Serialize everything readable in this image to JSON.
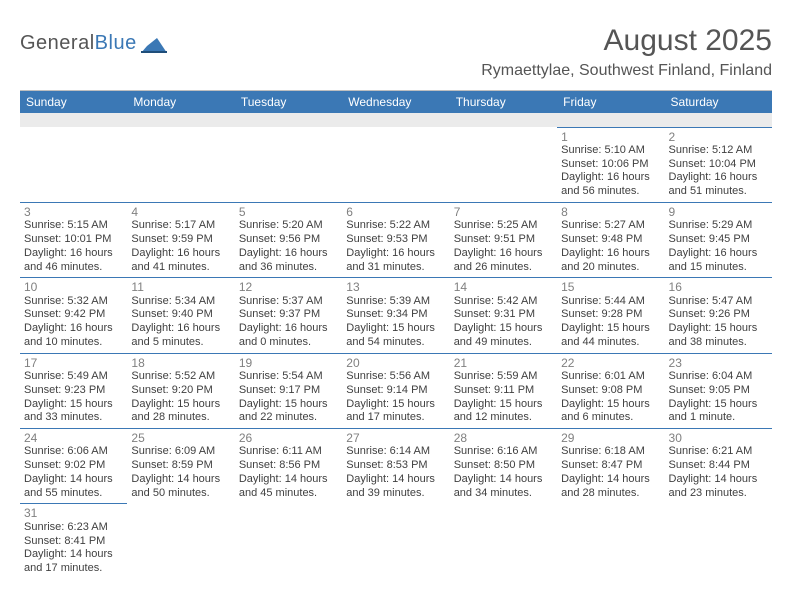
{
  "logo": {
    "text_general": "General",
    "text_blue": "Blue"
  },
  "title": "August 2025",
  "location": "Rymaettylae, Southwest Finland, Finland",
  "header_bg": "#3b78b5",
  "weekdays": [
    "Sunday",
    "Monday",
    "Tuesday",
    "Wednesday",
    "Thursday",
    "Friday",
    "Saturday"
  ],
  "weeks": [
    [
      null,
      null,
      null,
      null,
      null,
      {
        "n": "1",
        "sr": "Sunrise: 5:10 AM",
        "ss": "Sunset: 10:06 PM",
        "d1": "Daylight: 16 hours",
        "d2": "and 56 minutes."
      },
      {
        "n": "2",
        "sr": "Sunrise: 5:12 AM",
        "ss": "Sunset: 10:04 PM",
        "d1": "Daylight: 16 hours",
        "d2": "and 51 minutes."
      }
    ],
    [
      {
        "n": "3",
        "sr": "Sunrise: 5:15 AM",
        "ss": "Sunset: 10:01 PM",
        "d1": "Daylight: 16 hours",
        "d2": "and 46 minutes."
      },
      {
        "n": "4",
        "sr": "Sunrise: 5:17 AM",
        "ss": "Sunset: 9:59 PM",
        "d1": "Daylight: 16 hours",
        "d2": "and 41 minutes."
      },
      {
        "n": "5",
        "sr": "Sunrise: 5:20 AM",
        "ss": "Sunset: 9:56 PM",
        "d1": "Daylight: 16 hours",
        "d2": "and 36 minutes."
      },
      {
        "n": "6",
        "sr": "Sunrise: 5:22 AM",
        "ss": "Sunset: 9:53 PM",
        "d1": "Daylight: 16 hours",
        "d2": "and 31 minutes."
      },
      {
        "n": "7",
        "sr": "Sunrise: 5:25 AM",
        "ss": "Sunset: 9:51 PM",
        "d1": "Daylight: 16 hours",
        "d2": "and 26 minutes."
      },
      {
        "n": "8",
        "sr": "Sunrise: 5:27 AM",
        "ss": "Sunset: 9:48 PM",
        "d1": "Daylight: 16 hours",
        "d2": "and 20 minutes."
      },
      {
        "n": "9",
        "sr": "Sunrise: 5:29 AM",
        "ss": "Sunset: 9:45 PM",
        "d1": "Daylight: 16 hours",
        "d2": "and 15 minutes."
      }
    ],
    [
      {
        "n": "10",
        "sr": "Sunrise: 5:32 AM",
        "ss": "Sunset: 9:42 PM",
        "d1": "Daylight: 16 hours",
        "d2": "and 10 minutes."
      },
      {
        "n": "11",
        "sr": "Sunrise: 5:34 AM",
        "ss": "Sunset: 9:40 PM",
        "d1": "Daylight: 16 hours",
        "d2": "and 5 minutes."
      },
      {
        "n": "12",
        "sr": "Sunrise: 5:37 AM",
        "ss": "Sunset: 9:37 PM",
        "d1": "Daylight: 16 hours",
        "d2": "and 0 minutes."
      },
      {
        "n": "13",
        "sr": "Sunrise: 5:39 AM",
        "ss": "Sunset: 9:34 PM",
        "d1": "Daylight: 15 hours",
        "d2": "and 54 minutes."
      },
      {
        "n": "14",
        "sr": "Sunrise: 5:42 AM",
        "ss": "Sunset: 9:31 PM",
        "d1": "Daylight: 15 hours",
        "d2": "and 49 minutes."
      },
      {
        "n": "15",
        "sr": "Sunrise: 5:44 AM",
        "ss": "Sunset: 9:28 PM",
        "d1": "Daylight: 15 hours",
        "d2": "and 44 minutes."
      },
      {
        "n": "16",
        "sr": "Sunrise: 5:47 AM",
        "ss": "Sunset: 9:26 PM",
        "d1": "Daylight: 15 hours",
        "d2": "and 38 minutes."
      }
    ],
    [
      {
        "n": "17",
        "sr": "Sunrise: 5:49 AM",
        "ss": "Sunset: 9:23 PM",
        "d1": "Daylight: 15 hours",
        "d2": "and 33 minutes."
      },
      {
        "n": "18",
        "sr": "Sunrise: 5:52 AM",
        "ss": "Sunset: 9:20 PM",
        "d1": "Daylight: 15 hours",
        "d2": "and 28 minutes."
      },
      {
        "n": "19",
        "sr": "Sunrise: 5:54 AM",
        "ss": "Sunset: 9:17 PM",
        "d1": "Daylight: 15 hours",
        "d2": "and 22 minutes."
      },
      {
        "n": "20",
        "sr": "Sunrise: 5:56 AM",
        "ss": "Sunset: 9:14 PM",
        "d1": "Daylight: 15 hours",
        "d2": "and 17 minutes."
      },
      {
        "n": "21",
        "sr": "Sunrise: 5:59 AM",
        "ss": "Sunset: 9:11 PM",
        "d1": "Daylight: 15 hours",
        "d2": "and 12 minutes."
      },
      {
        "n": "22",
        "sr": "Sunrise: 6:01 AM",
        "ss": "Sunset: 9:08 PM",
        "d1": "Daylight: 15 hours",
        "d2": "and 6 minutes."
      },
      {
        "n": "23",
        "sr": "Sunrise: 6:04 AM",
        "ss": "Sunset: 9:05 PM",
        "d1": "Daylight: 15 hours",
        "d2": "and 1 minute."
      }
    ],
    [
      {
        "n": "24",
        "sr": "Sunrise: 6:06 AM",
        "ss": "Sunset: 9:02 PM",
        "d1": "Daylight: 14 hours",
        "d2": "and 55 minutes."
      },
      {
        "n": "25",
        "sr": "Sunrise: 6:09 AM",
        "ss": "Sunset: 8:59 PM",
        "d1": "Daylight: 14 hours",
        "d2": "and 50 minutes."
      },
      {
        "n": "26",
        "sr": "Sunrise: 6:11 AM",
        "ss": "Sunset: 8:56 PM",
        "d1": "Daylight: 14 hours",
        "d2": "and 45 minutes."
      },
      {
        "n": "27",
        "sr": "Sunrise: 6:14 AM",
        "ss": "Sunset: 8:53 PM",
        "d1": "Daylight: 14 hours",
        "d2": "and 39 minutes."
      },
      {
        "n": "28",
        "sr": "Sunrise: 6:16 AM",
        "ss": "Sunset: 8:50 PM",
        "d1": "Daylight: 14 hours",
        "d2": "and 34 minutes."
      },
      {
        "n": "29",
        "sr": "Sunrise: 6:18 AM",
        "ss": "Sunset: 8:47 PM",
        "d1": "Daylight: 14 hours",
        "d2": "and 28 minutes."
      },
      {
        "n": "30",
        "sr": "Sunrise: 6:21 AM",
        "ss": "Sunset: 8:44 PM",
        "d1": "Daylight: 14 hours",
        "d2": "and 23 minutes."
      }
    ],
    [
      {
        "n": "31",
        "sr": "Sunrise: 6:23 AM",
        "ss": "Sunset: 8:41 PM",
        "d1": "Daylight: 14 hours",
        "d2": "and 17 minutes."
      },
      null,
      null,
      null,
      null,
      null,
      null
    ]
  ]
}
